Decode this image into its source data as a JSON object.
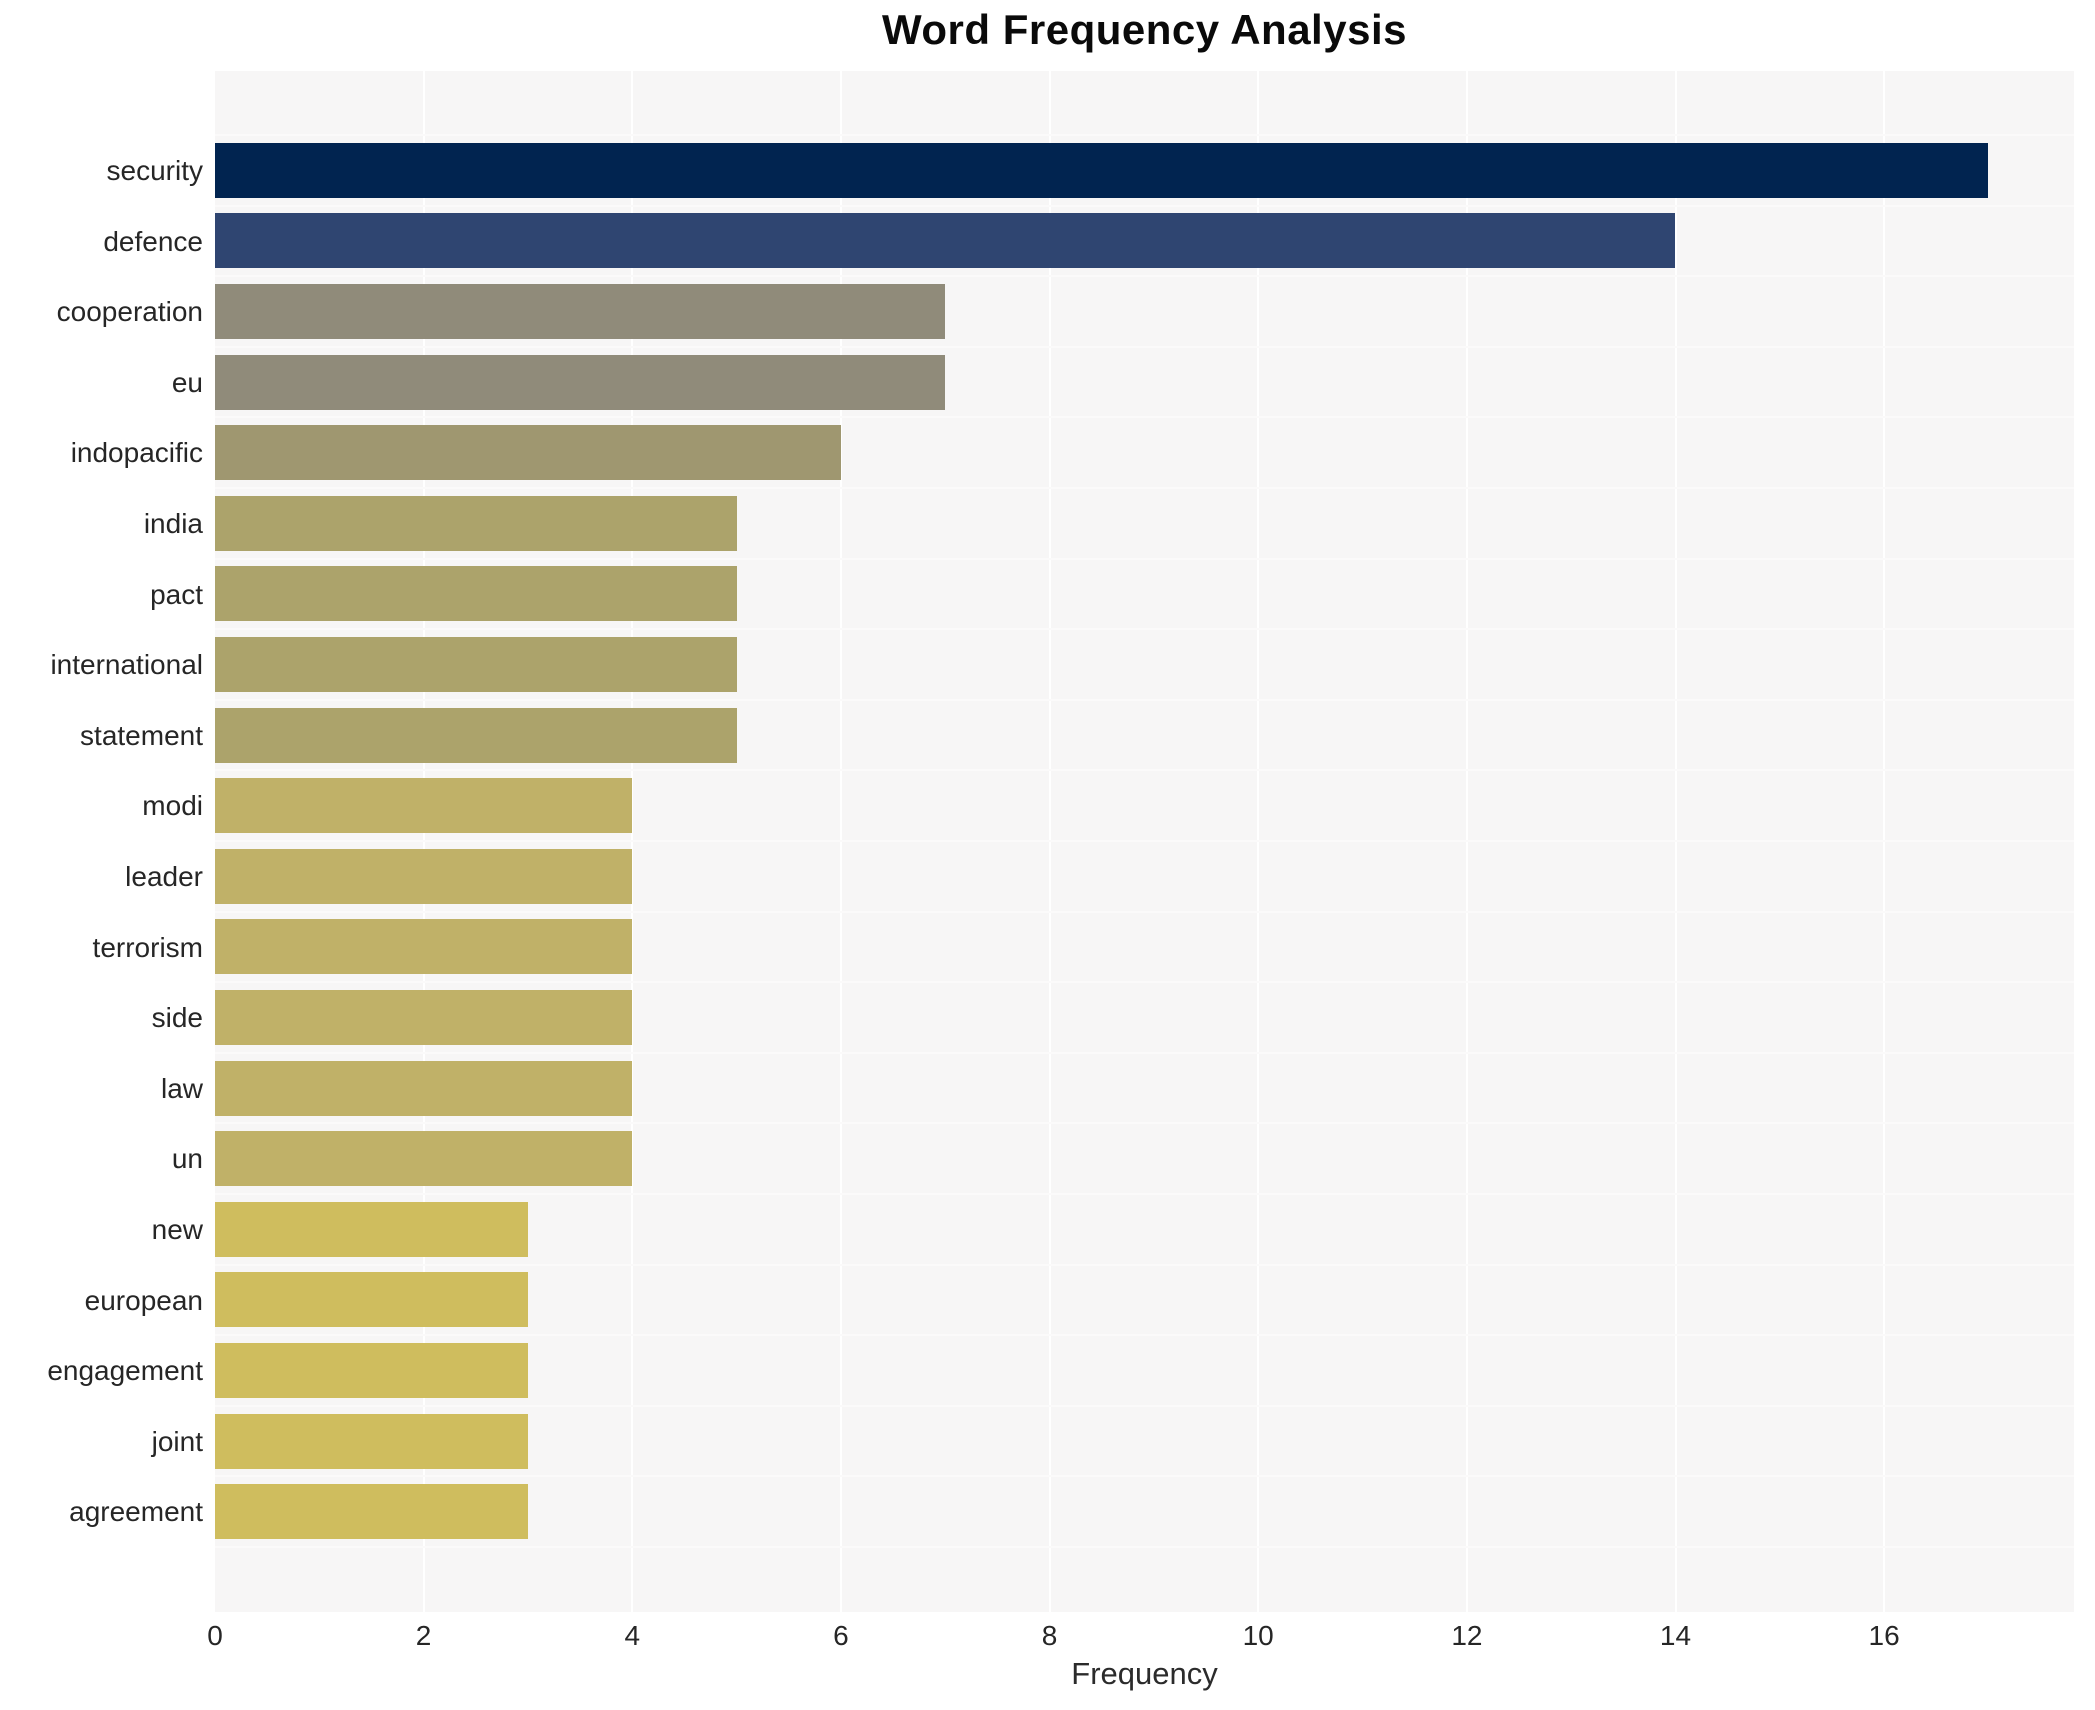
{
  "chart_data": {
    "type": "bar",
    "orientation": "horizontal",
    "title": "Word Frequency Analysis",
    "xlabel": "Frequency",
    "ylabel": "",
    "categories": [
      "security",
      "defence",
      "cooperation",
      "eu",
      "indopacific",
      "india",
      "pact",
      "international",
      "statement",
      "modi",
      "leader",
      "terrorism",
      "side",
      "law",
      "un",
      "new",
      "european",
      "engagement",
      "joint",
      "agreement"
    ],
    "values": [
      17,
      14,
      7,
      7,
      6,
      5,
      5,
      5,
      5,
      4,
      4,
      4,
      4,
      4,
      4,
      3,
      3,
      3,
      3,
      3
    ],
    "bar_colors": [
      "#012450",
      "#2f4571",
      "#908b7a",
      "#908b7a",
      "#9f9770",
      "#aca36b",
      "#aca36b",
      "#aca36b",
      "#aca36b",
      "#c0b168",
      "#c0b168",
      "#c0b168",
      "#c0b168",
      "#c0b168",
      "#c0b168",
      "#cfbd5e",
      "#cfbd5e",
      "#cfbd5e",
      "#cfbd5e",
      "#cfbd5e"
    ],
    "xticks": [
      0,
      2,
      4,
      6,
      8,
      10,
      12,
      14,
      16
    ],
    "xlim": [
      0,
      17.82
    ],
    "grid": true,
    "legend": "none",
    "plot_background": "#f7f6f6",
    "page_background": "#ffffff"
  }
}
